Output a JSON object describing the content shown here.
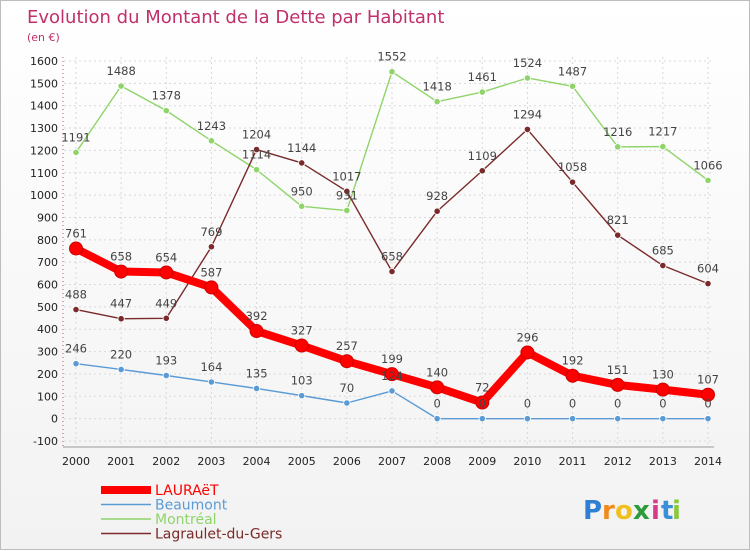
{
  "chart_data": {
    "type": "line",
    "title": "Evolution du Montant de la Dette par Habitant",
    "subtitle": "(en €)",
    "xlabel": "",
    "ylabel": "",
    "x": [
      "2000",
      "2001",
      "2002",
      "2003",
      "2004",
      "2005",
      "2006",
      "2007",
      "2008",
      "2009",
      "2010",
      "2011",
      "2012",
      "2013",
      "2014"
    ],
    "ylim": [
      -100,
      1600
    ],
    "yticks": [
      -100,
      0,
      100,
      200,
      300,
      400,
      500,
      600,
      700,
      800,
      900,
      1000,
      1100,
      1200,
      1300,
      1400,
      1500,
      1600
    ],
    "grid": true,
    "legend_position": "bottom-left",
    "series": [
      {
        "name": "LAURAëT",
        "color": "#ff0000",
        "values": [
          761,
          658,
          654,
          587,
          392,
          327,
          257,
          199,
          140,
          72,
          296,
          192,
          151,
          130,
          107
        ]
      },
      {
        "name": "Beaumont",
        "color": "#5b9bd5",
        "values": [
          246,
          220,
          193,
          164,
          135,
          103,
          70,
          124,
          0,
          0,
          0,
          0,
          0,
          0,
          0
        ]
      },
      {
        "name": "Montréal",
        "color": "#8fd46a",
        "values": [
          1191,
          1488,
          1378,
          1243,
          1114,
          950,
          931,
          1552,
          1418,
          1461,
          1524,
          1487,
          1216,
          1217,
          1066
        ]
      },
      {
        "name": "Lagraulet-du-Gers",
        "color": "#7a2a2a",
        "values": [
          488,
          447,
          449,
          769,
          1204,
          1144,
          1017,
          658,
          928,
          1109,
          1294,
          1058,
          821,
          685,
          604
        ]
      }
    ]
  },
  "logo": {
    "letters": [
      "P",
      "r",
      "o",
      "x",
      "i",
      "t",
      "i"
    ],
    "colors": [
      "#2f7fd3",
      "#f08a1c",
      "#f0c020",
      "#2e9b3a",
      "#d83a8a",
      "#3a8fd8",
      "#8bc83a"
    ]
  }
}
